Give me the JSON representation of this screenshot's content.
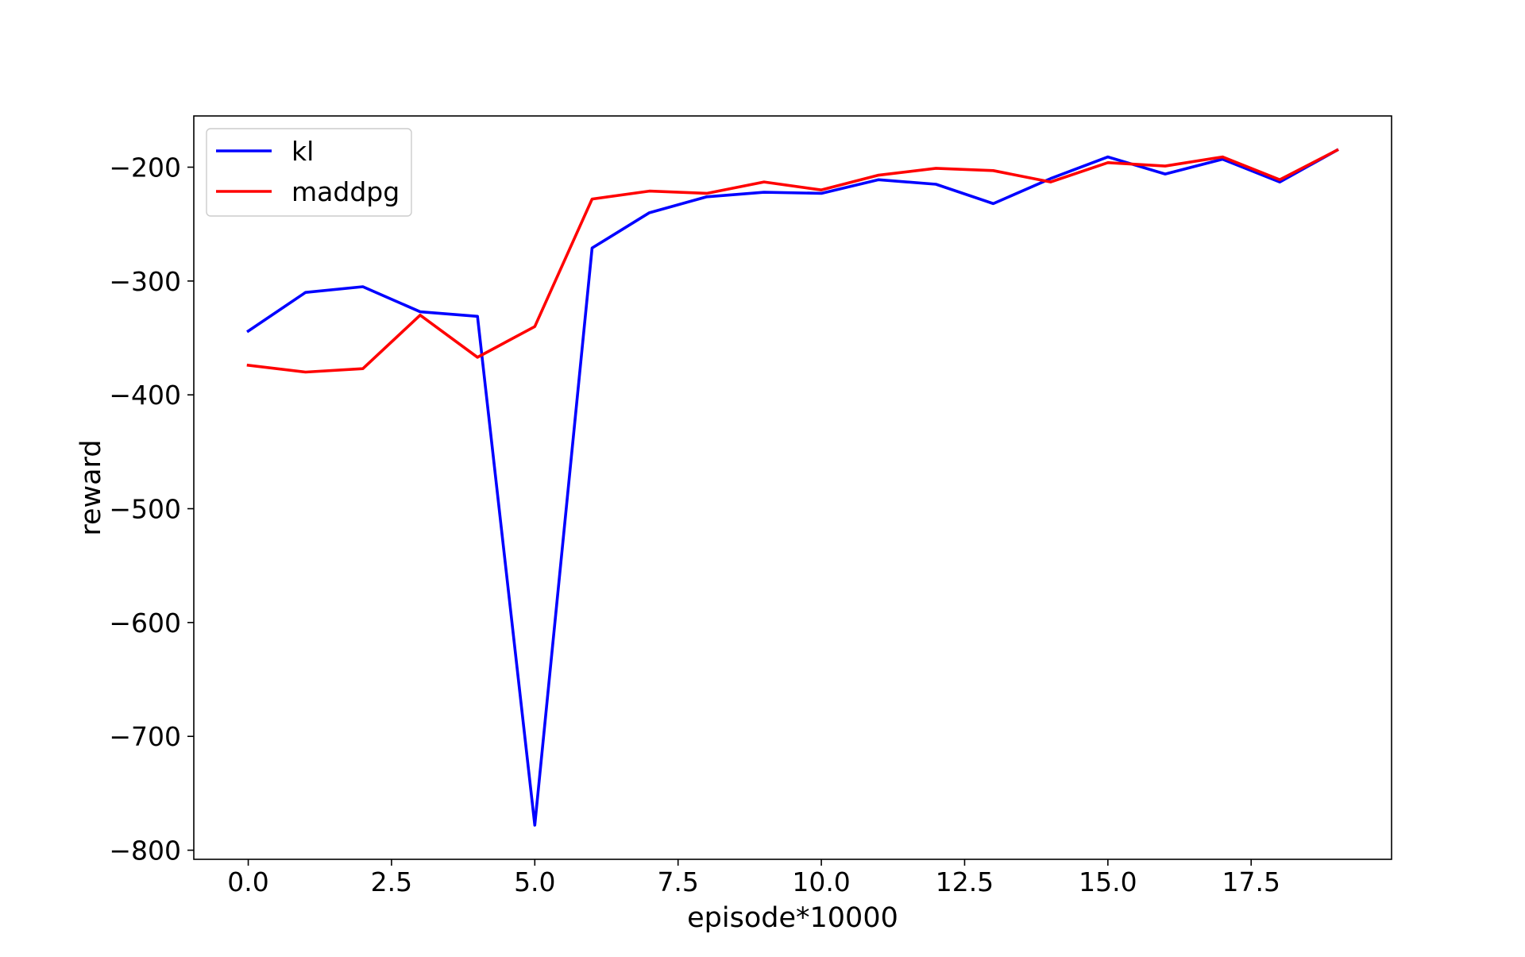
{
  "chart_data": {
    "type": "line",
    "title": "",
    "xlabel": "episode*10000",
    "ylabel": "reward",
    "xlim": [
      -0.95,
      19.95
    ],
    "ylim": [
      -808,
      -155
    ],
    "xticks": [
      0.0,
      2.5,
      5.0,
      7.5,
      10.0,
      12.5,
      15.0,
      17.5
    ],
    "xtick_labels": [
      "0.0",
      "2.5",
      "5.0",
      "7.5",
      "10.0",
      "12.5",
      "15.0",
      "17.5"
    ],
    "yticks": [
      -200,
      -300,
      -400,
      -500,
      -600,
      -700,
      -800
    ],
    "ytick_labels": [
      "−200",
      "−300",
      "−400",
      "−500",
      "−600",
      "−700",
      "−800"
    ],
    "grid": false,
    "legend_position": "top-left",
    "x": [
      0,
      1,
      2,
      3,
      4,
      5,
      6,
      7,
      8,
      9,
      10,
      11,
      12,
      13,
      14,
      15,
      16,
      17,
      18,
      19
    ],
    "series": [
      {
        "name": "kl",
        "color": "#0000ff",
        "values": [
          -344,
          -310,
          -305,
          -327,
          -331,
          -778,
          -271,
          -240,
          -226,
          -222,
          -223,
          -211,
          -215,
          -232,
          -210,
          -191,
          -206,
          -193,
          -213,
          -185
        ]
      },
      {
        "name": "maddpg",
        "color": "#ff0000",
        "values": [
          -374,
          -380,
          -377,
          -330,
          -367,
          -340,
          -228,
          -221,
          -223,
          -213,
          -220,
          -207,
          -201,
          -203,
          -213,
          -196,
          -199,
          -191,
          -211,
          -185
        ]
      }
    ]
  }
}
